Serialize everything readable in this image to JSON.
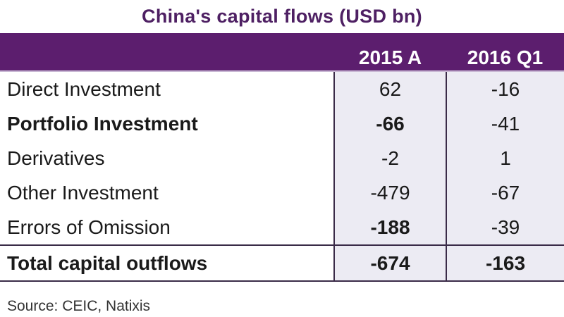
{
  "chart_data": {
    "type": "table",
    "title": "China's capital flows (USD bn)",
    "columns": [
      "",
      "2015 A",
      "2016 Q1"
    ],
    "rows": [
      {
        "label": "Direct Investment",
        "values": [
          "62",
          "-16"
        ],
        "bold_label": false,
        "bold_values": [
          false,
          false
        ]
      },
      {
        "label": "Portfolio Investment",
        "values": [
          "-66",
          "-41"
        ],
        "bold_label": true,
        "bold_values": [
          true,
          false
        ]
      },
      {
        "label": "Derivatives",
        "values": [
          "-2",
          "1"
        ],
        "bold_label": false,
        "bold_values": [
          false,
          false
        ]
      },
      {
        "label": "Other Investment",
        "values": [
          "-479",
          "-67"
        ],
        "bold_label": false,
        "bold_values": [
          false,
          false
        ]
      },
      {
        "label": "Errors of Omission",
        "values": [
          "-188",
          "-39"
        ],
        "bold_label": false,
        "bold_values": [
          true,
          false
        ]
      },
      {
        "label": "Total capital outflows",
        "values": [
          "-674",
          "-163"
        ],
        "bold_label": true,
        "bold_values": [
          true,
          true
        ]
      }
    ],
    "source": "Source: CEIC, Natixis",
    "colors": {
      "header_bg": "#5c1e6e",
      "title": "#4e2063",
      "cell_bg": "#ecebf3"
    }
  }
}
